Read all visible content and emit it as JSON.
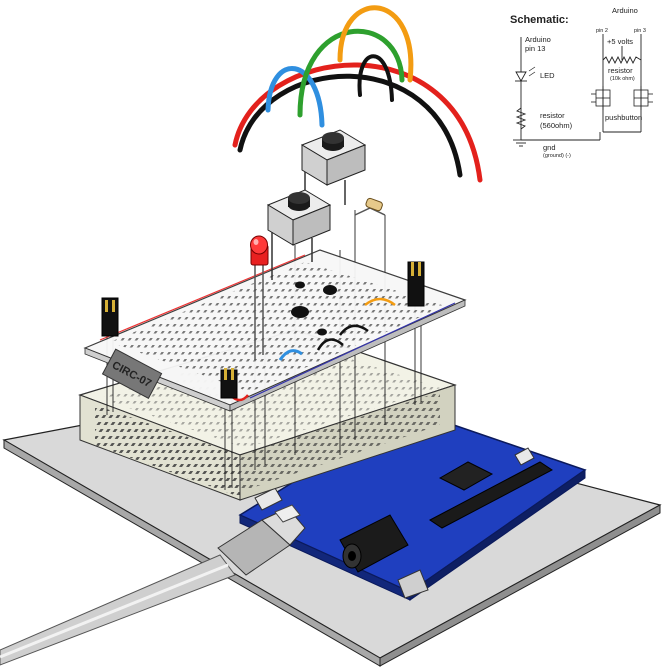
{
  "schematic": {
    "title": "Schematic:",
    "left_arduino": "Arduino",
    "left_pin": "pin 13",
    "led": "LED",
    "resistor1": "resistor",
    "resistor1_value": "(560ohm)",
    "gnd": "gnd",
    "gnd_sub": "(ground) (-)",
    "right_arduino": "Arduino",
    "pin2": "pin 2",
    "pin3": "pin 3",
    "plus5v": "+5 volts",
    "resistor2": "resistor",
    "resistor2_value": "(10k ohm)",
    "pushbutton": "pushbutton"
  },
  "overlay": {
    "circuit_label": "CIRC-07"
  },
  "colors": {
    "baseplate": "#d9d9d9",
    "arduino_board": "#1f3fbf",
    "breadboard": "#f2f2e6",
    "wire_red": "#e3211c",
    "wire_orange": "#f39c12",
    "wire_green": "#2ea02e",
    "wire_blue": "#2f8fe0",
    "wire_black": "#111111",
    "led_red": "#e82020"
  }
}
